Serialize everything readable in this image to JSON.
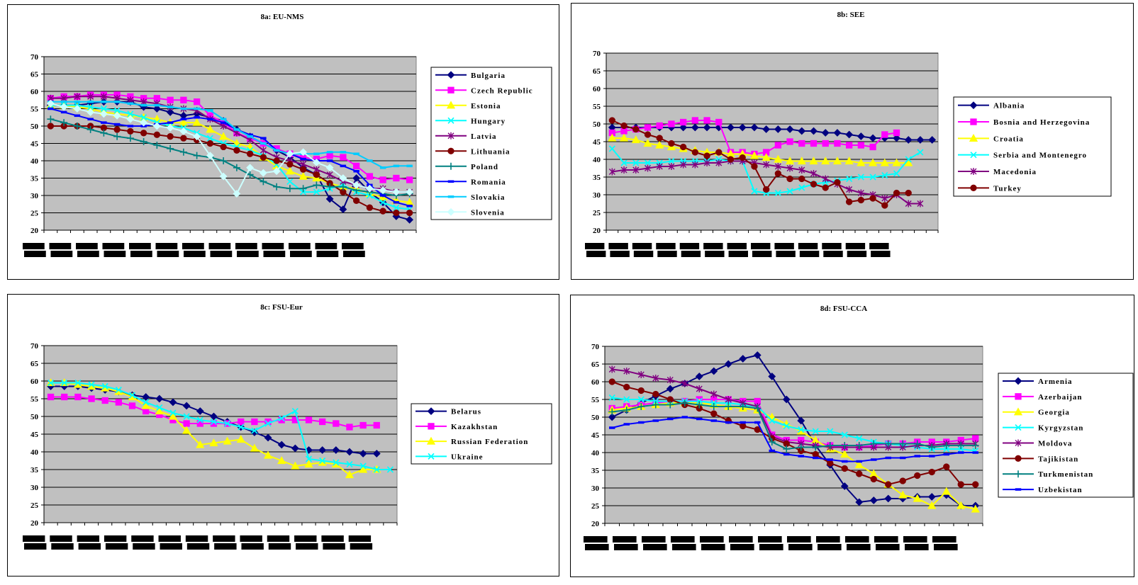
{
  "chart_data": [
    {
      "id": "8a",
      "type": "line",
      "title": "8a: EU-NMS",
      "ylim": [
        20,
        70
      ],
      "yticks": [
        20,
        25,
        30,
        35,
        40,
        45,
        50,
        55,
        60,
        65,
        70
      ],
      "legend_position": "right",
      "series": [
        {
          "name": "Bulgaria",
          "color": "#000080",
          "marker": "diamond",
          "values": [
            56,
            56,
            56,
            56.5,
            57,
            57,
            57,
            55.5,
            55,
            54,
            53,
            53.5,
            52.5,
            51.5,
            49,
            47,
            45,
            43,
            41,
            38,
            36,
            29,
            26,
            35,
            31,
            28,
            24,
            23
          ]
        },
        {
          "name": "Czech Republic",
          "color": "#FF00FF",
          "marker": "square",
          "values": [
            58,
            58.5,
            58.5,
            59,
            59,
            59,
            58.5,
            58,
            58,
            57.5,
            57.5,
            57,
            53,
            51,
            48,
            46.5,
            45,
            43.5,
            42,
            41,
            40.5,
            41.5,
            41,
            38.5,
            35.5,
            34.5,
            35,
            34.5
          ]
        },
        {
          "name": "Estonia",
          "color": "#FFFF00",
          "marker": "triangle",
          "values": [
            56,
            56,
            55.5,
            55,
            54,
            53.5,
            53,
            52.5,
            52,
            51,
            51,
            51,
            49,
            47,
            45,
            44,
            41,
            38.5,
            37,
            35.5,
            35,
            33.5,
            32.5,
            32,
            30.5,
            29.5,
            28.5,
            28
          ]
        },
        {
          "name": "Hungary",
          "color": "#00FFFF",
          "marker": "x",
          "values": [
            56,
            56,
            56,
            55.5,
            55,
            54.5,
            53.5,
            52.5,
            51,
            50,
            49.5,
            48,
            46.5,
            45,
            44,
            43,
            41.5,
            39,
            34,
            31,
            31,
            32,
            33,
            31,
            30,
            28,
            26.5,
            26
          ]
        },
        {
          "name": "Latvia",
          "color": "#800080",
          "marker": "star",
          "values": [
            58,
            58,
            58.5,
            58.5,
            58.5,
            58,
            57.5,
            57,
            56.5,
            55.5,
            55,
            54.5,
            52,
            50,
            48,
            46,
            43,
            41,
            40,
            39,
            37.5,
            36,
            34,
            33,
            32,
            32,
            31,
            31
          ]
        },
        {
          "name": "Lithuania",
          "color": "#800000",
          "marker": "circle",
          "values": [
            50,
            50,
            50,
            50,
            49.5,
            49,
            48.5,
            48,
            47.5,
            47,
            46.5,
            46,
            45,
            44,
            43,
            42,
            41,
            40,
            39,
            37.5,
            36,
            33.5,
            31,
            28.5,
            26.5,
            25.5,
            25,
            25
          ]
        },
        {
          "name": "Poland",
          "color": "#008080",
          "marker": "plus",
          "values": [
            52,
            51,
            50,
            49,
            48,
            47,
            46.5,
            45.5,
            44.5,
            43.5,
            42.5,
            41.5,
            41,
            40,
            38,
            36,
            34,
            32.5,
            32,
            32,
            33,
            32.5,
            32.5,
            31.5,
            31,
            30.5,
            30,
            30.5
          ]
        },
        {
          "name": "Romania",
          "color": "#0000FF",
          "marker": "dash",
          "values": [
            55,
            54,
            53,
            52,
            51,
            50.5,
            50,
            50,
            50.5,
            51,
            52,
            52.5,
            52,
            51,
            49,
            47.5,
            46.5,
            43,
            42,
            40.5,
            40,
            40,
            38.5,
            37,
            33,
            30,
            28,
            27
          ]
        },
        {
          "name": "Slovakia",
          "color": "#00CCFF",
          "marker": "dash",
          "values": [
            57,
            57,
            57,
            57,
            57,
            57,
            56.5,
            56,
            56,
            55.5,
            55,
            55,
            54.5,
            52,
            49,
            47,
            45,
            43,
            42,
            42,
            42,
            42.5,
            42.5,
            42,
            40,
            38,
            38.5,
            38.5
          ]
        },
        {
          "name": "Slovenia",
          "color": "#CCFFFF",
          "marker": "diamond",
          "values": [
            56.5,
            55.5,
            55,
            54,
            53.5,
            53,
            52,
            51,
            50,
            49.5,
            48.5,
            47,
            41.5,
            35.5,
            30.5,
            38,
            36.5,
            37,
            42,
            42.5,
            39.5,
            38,
            35,
            33,
            32,
            31.5,
            31,
            31
          ]
        }
      ]
    },
    {
      "id": "8b",
      "type": "line",
      "title": "8b: SEE",
      "ylim": [
        20,
        70
      ],
      "yticks": [
        20,
        25,
        30,
        35,
        40,
        45,
        50,
        55,
        60,
        65,
        70
      ],
      "legend_position": "right",
      "series": [
        {
          "name": "Albania",
          "color": "#000080",
          "marker": "diamond",
          "values": [
            49,
            49,
            49,
            49,
            49,
            49,
            49,
            49,
            49,
            49,
            49,
            49,
            49,
            48.5,
            48.5,
            48.5,
            48,
            48,
            47.5,
            47.5,
            47,
            46.5,
            46,
            46,
            46,
            45.5,
            45.5,
            45.5
          ]
        },
        {
          "name": "Bosnia and Herzegovina",
          "color": "#FF00FF",
          "marker": "square",
          "values": [
            47.5,
            48,
            48.5,
            49,
            49.5,
            50,
            50.5,
            51,
            51,
            50.5,
            42,
            42,
            41.5,
            42,
            44,
            45,
            44.5,
            44.5,
            44.5,
            44.5,
            44,
            44,
            43.5,
            47,
            47.5
          ]
        },
        {
          "name": "Croatia",
          "color": "#FFFF00",
          "marker": "triangle",
          "values": [
            46,
            46,
            45.5,
            44.5,
            44,
            43.5,
            43,
            42.5,
            42,
            42,
            41.5,
            41.5,
            41,
            40.5,
            40,
            39.5,
            39.5,
            39.5,
            39.5,
            39.5,
            39.5,
            39,
            39,
            39,
            39,
            39
          ]
        },
        {
          "name": "Serbia and Montenegro",
          "color": "#00FFFF",
          "marker": "x",
          "values": [
            43,
            39,
            39,
            39,
            39,
            39.5,
            39.5,
            39.5,
            39.5,
            40,
            39.5,
            39.5,
            31,
            30.5,
            30.5,
            31,
            32,
            33,
            33.5,
            34,
            34.5,
            35,
            35,
            35.5,
            36,
            40,
            42
          ]
        },
        {
          "name": "Macedonia",
          "color": "#800080",
          "marker": "star",
          "values": [
            36.5,
            37,
            37,
            37.5,
            38,
            38,
            38.5,
            38.5,
            39,
            39,
            39.5,
            39.5,
            39,
            38.5,
            38,
            37.5,
            37,
            36,
            34.5,
            33,
            31.5,
            30.5,
            30,
            29,
            30,
            27.5,
            27.5
          ]
        },
        {
          "name": "Turkey",
          "color": "#800000",
          "marker": "circle",
          "values": [
            51,
            49.5,
            48.5,
            47,
            46,
            44.5,
            43.5,
            42,
            41,
            42,
            40,
            40.5,
            38,
            31.5,
            36,
            34.5,
            34.5,
            33,
            32,
            33.5,
            28,
            28.5,
            29,
            27,
            30.5,
            30.5
          ]
        }
      ]
    },
    {
      "id": "8c",
      "type": "line",
      "title": "8c: FSU-Eur",
      "ylim": [
        20,
        70
      ],
      "yticks": [
        20,
        25,
        30,
        35,
        40,
        45,
        50,
        55,
        60,
        65,
        70
      ],
      "legend_position": "right",
      "series": [
        {
          "name": "Belarus",
          "color": "#000080",
          "marker": "diamond",
          "values": [
            58.5,
            58.5,
            58.5,
            58,
            57.5,
            57,
            56,
            55.5,
            55,
            54,
            53,
            51.5,
            50,
            48.5,
            47,
            45.5,
            44,
            42,
            41,
            40.5,
            40.5,
            40.5,
            40,
            39.5,
            39.5
          ]
        },
        {
          "name": "Kazakhstan",
          "color": "#FF00FF",
          "marker": "square",
          "values": [
            55.5,
            55.5,
            55.5,
            55,
            54.5,
            54,
            53,
            51.5,
            50.5,
            49,
            48,
            48,
            48,
            48,
            48.5,
            48.5,
            48.5,
            49,
            49,
            49,
            48.5,
            48,
            47,
            47.5,
            47.5
          ]
        },
        {
          "name": "Russian Federation",
          "color": "#FFFF00",
          "marker": "triangle",
          "values": [
            59.5,
            59.5,
            59,
            58.5,
            58,
            57,
            55.5,
            53,
            51.5,
            50,
            46,
            42,
            42.5,
            43,
            43.5,
            41,
            39,
            37.5,
            36,
            36.5,
            37,
            36.5,
            33.5,
            35,
            35
          ]
        },
        {
          "name": "Ukraine",
          "color": "#00FFFF",
          "marker": "x",
          "values": [
            59.5,
            59.5,
            59.5,
            59,
            58.5,
            57.5,
            56,
            54,
            52.5,
            51,
            50,
            49,
            48.5,
            48,
            47,
            46,
            48,
            49.5,
            51.5,
            38,
            37.5,
            37,
            36.5,
            36,
            35,
            35
          ]
        }
      ]
    },
    {
      "id": "8d",
      "type": "line",
      "title": "8d: FSU-CCA",
      "ylim": [
        20,
        70
      ],
      "yticks": [
        20,
        25,
        30,
        35,
        40,
        45,
        50,
        55,
        60,
        65,
        70
      ],
      "legend_position": "right",
      "series": [
        {
          "name": "Armenia",
          "color": "#000080",
          "marker": "diamond",
          "values": [
            50,
            52,
            54,
            56,
            58,
            59.5,
            61.5,
            63,
            65,
            66.5,
            67.5,
            61.5,
            55,
            49,
            42,
            36.5,
            30.5,
            26,
            26.5,
            27,
            27,
            27.5,
            27.5,
            28,
            25,
            25
          ]
        },
        {
          "name": "Azerbaijan",
          "color": "#FF00FF",
          "marker": "square",
          "values": [
            52.5,
            53,
            53.5,
            54,
            54.5,
            54.5,
            55,
            55,
            55,
            54.5,
            54.5,
            45,
            43.5,
            43.5,
            43,
            42,
            41.5,
            41.5,
            42,
            42.5,
            42.5,
            43,
            43,
            43,
            43.5,
            44
          ]
        },
        {
          "name": "Georgia",
          "color": "#FFFF00",
          "marker": "triangle",
          "values": [
            52,
            52.5,
            53,
            53.5,
            54,
            54,
            54,
            53.5,
            53,
            52.5,
            52,
            50,
            48,
            46,
            43.5,
            41,
            39.5,
            36.5,
            34,
            31,
            28,
            27,
            25,
            29,
            25,
            24
          ]
        },
        {
          "name": "Kyrgyzstan",
          "color": "#00FFFF",
          "marker": "x",
          "values": [
            55.5,
            55,
            55,
            54.5,
            54.5,
            54.5,
            54.5,
            54,
            54,
            53.5,
            53,
            49,
            47.5,
            46.5,
            46,
            46,
            45,
            44,
            43,
            42.5,
            42,
            41.5,
            41,
            41,
            41,
            40.5
          ]
        },
        {
          "name": "Moldova",
          "color": "#800080",
          "marker": "star",
          "values": [
            63.5,
            63,
            62,
            61,
            60.5,
            59.5,
            58,
            56.5,
            55,
            54,
            53,
            44.5,
            43,
            42.5,
            42,
            41.5,
            41.5,
            41.5,
            41.5,
            41.5,
            41.5,
            42,
            42,
            42.5,
            42.5,
            42.5
          ]
        },
        {
          "name": "Tajikistan",
          "color": "#800000",
          "marker": "circle",
          "values": [
            60,
            58.5,
            57.5,
            56.5,
            55,
            53.5,
            52.5,
            51,
            49,
            47.5,
            46.5,
            44,
            42.5,
            40.5,
            39.5,
            37,
            35.5,
            34,
            32.5,
            31,
            32,
            33.5,
            34.5,
            36,
            31,
            31
          ]
        },
        {
          "name": "Turkmenistan",
          "color": "#008080",
          "marker": "plus",
          "values": [
            51.5,
            52,
            53,
            53.5,
            53.5,
            54,
            53.5,
            53,
            53,
            53,
            52.5,
            43,
            41,
            41.5,
            41.5,
            42,
            42,
            42,
            42.5,
            42.5,
            42.5,
            42.5,
            41.5,
            42,
            42,
            42
          ]
        },
        {
          "name": "Uzbekistan",
          "color": "#0000FF",
          "marker": "dash",
          "values": [
            47,
            48,
            48.5,
            49,
            49.5,
            50,
            49.5,
            49,
            48.5,
            48.5,
            48.5,
            40.5,
            39.5,
            39,
            38.5,
            38,
            37.5,
            37.5,
            38,
            38.5,
            38.5,
            39,
            39,
            39.5,
            40,
            40
          ]
        }
      ]
    }
  ]
}
